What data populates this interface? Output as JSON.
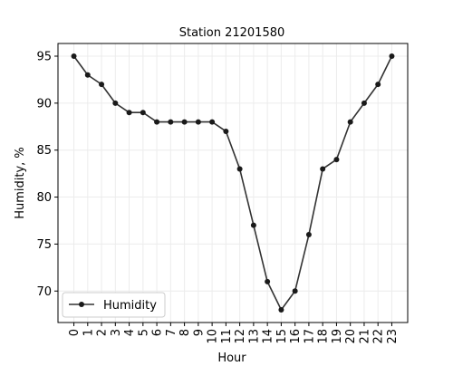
{
  "chart_data": {
    "type": "line",
    "title": "Station 21201580",
    "xlabel": "Hour",
    "ylabel": "Humidity, %",
    "x": [
      0,
      1,
      2,
      3,
      4,
      5,
      6,
      7,
      8,
      9,
      10,
      11,
      12,
      13,
      14,
      15,
      16,
      17,
      18,
      19,
      20,
      21,
      22,
      23
    ],
    "series": [
      {
        "name": "Humidity",
        "values": [
          95,
          93,
          92,
          90,
          89,
          89,
          88,
          88,
          88,
          88,
          88,
          87,
          83,
          77,
          71,
          68,
          70,
          76,
          83,
          84,
          88,
          90,
          92,
          95
        ]
      }
    ],
    "x_ticks": [
      "0",
      "1",
      "2",
      "3",
      "4",
      "5",
      "6",
      "7",
      "8",
      "9",
      "10",
      "11",
      "12",
      "13",
      "14",
      "15",
      "16",
      "17",
      "18",
      "19",
      "20",
      "21",
      "22",
      "23"
    ],
    "y_ticks": [
      "70",
      "75",
      "80",
      "85",
      "90",
      "95"
    ],
    "ylim": [
      66.65,
      96.35
    ],
    "xlim": [
      -1.15,
      24.15
    ],
    "grid": true,
    "legend": "lower-left",
    "colors": {
      "line": "#333333",
      "marker": "#1a1a1a",
      "grid": "#ececec",
      "axes": "#000000"
    }
  }
}
